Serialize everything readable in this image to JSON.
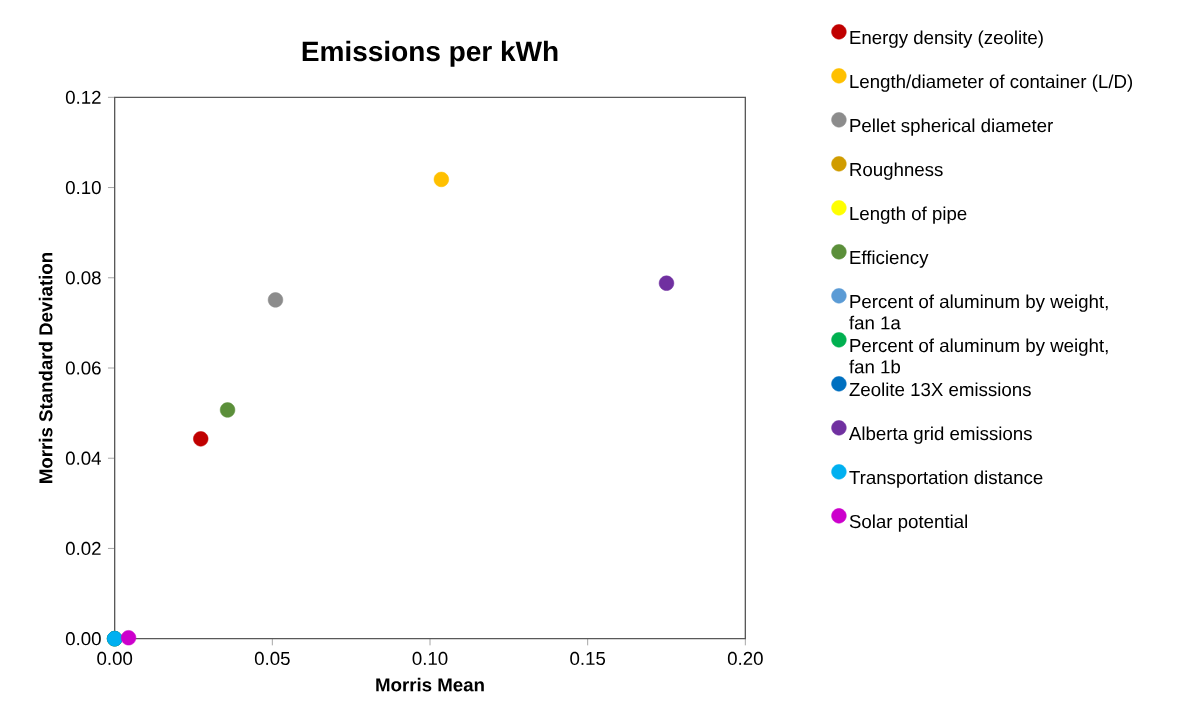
{
  "chart_data": {
    "type": "scatter",
    "title": "Emissions per kWh",
    "xlabel": "Morris Mean",
    "ylabel": "Morris Standard Deviation",
    "xlim": [
      0,
      0.2
    ],
    "ylim": [
      0,
      0.12
    ],
    "xticks": [
      {
        "value": 0,
        "label": "0.00"
      },
      {
        "value": 0.05,
        "label": "0.05"
      },
      {
        "value": 0.1,
        "label": "0.10"
      },
      {
        "value": 0.15,
        "label": "0.15"
      },
      {
        "value": 0.2,
        "label": "0.20"
      }
    ],
    "yticks": [
      {
        "value": 0,
        "label": "0.00"
      },
      {
        "value": 0.02,
        "label": "0.02"
      },
      {
        "value": 0.04,
        "label": "0.04"
      },
      {
        "value": 0.06,
        "label": "0.06"
      },
      {
        "value": 0.08,
        "label": "0.08"
      },
      {
        "value": 0.1,
        "label": "0.10"
      },
      {
        "value": 0.12,
        "label": "0.12"
      }
    ],
    "grid": false,
    "legend": "right",
    "marker": "circle",
    "series": [
      {
        "name": "Energy density (zeolite)",
        "color": "#c00000",
        "x": [
          0.0273
        ],
        "values": [
          0.0443
        ]
      },
      {
        "name": "Length/diameter of container (L/D)",
        "color": "#ffc000",
        "x": [
          0.1036
        ],
        "values": [
          0.1018
        ]
      },
      {
        "name": "Pellet spherical diameter",
        "color": "#8c8c8c",
        "x": [
          0.051
        ],
        "values": [
          0.0751
        ]
      },
      {
        "name": "Roughness",
        "color": "#d09c00",
        "x": [
          0
        ],
        "values": [
          0
        ]
      },
      {
        "name": "Length of pipe",
        "color": "#ffff00",
        "x": [
          0
        ],
        "values": [
          0
        ]
      },
      {
        "name": "Efficiency",
        "color": "#5b8f3a",
        "x": [
          0.0358
        ],
        "values": [
          0.0507
        ]
      },
      {
        "name": "Percent of aluminum by weight, fan 1a",
        "color": "#5b9bd5",
        "x": [
          0
        ],
        "values": [
          0
        ]
      },
      {
        "name": "Percent of aluminum by weight, fan 1b",
        "color": "#00b050",
        "x": [
          0
        ],
        "values": [
          0
        ]
      },
      {
        "name": "Zeolite 13X emissions",
        "color": "#0070c0",
        "x": [
          0
        ],
        "values": [
          0
        ]
      },
      {
        "name": "Alberta grid emissions",
        "color": "#7030a0",
        "x": [
          0.175
        ],
        "values": [
          0.0788
        ]
      },
      {
        "name": "Transportation distance",
        "color": "#00b0f0",
        "x": [
          0
        ],
        "values": [
          0
        ]
      },
      {
        "name": "Solar potential",
        "color": "#cc00cc",
        "x": [
          0.0044
        ],
        "values": [
          0.0002
        ]
      }
    ]
  }
}
